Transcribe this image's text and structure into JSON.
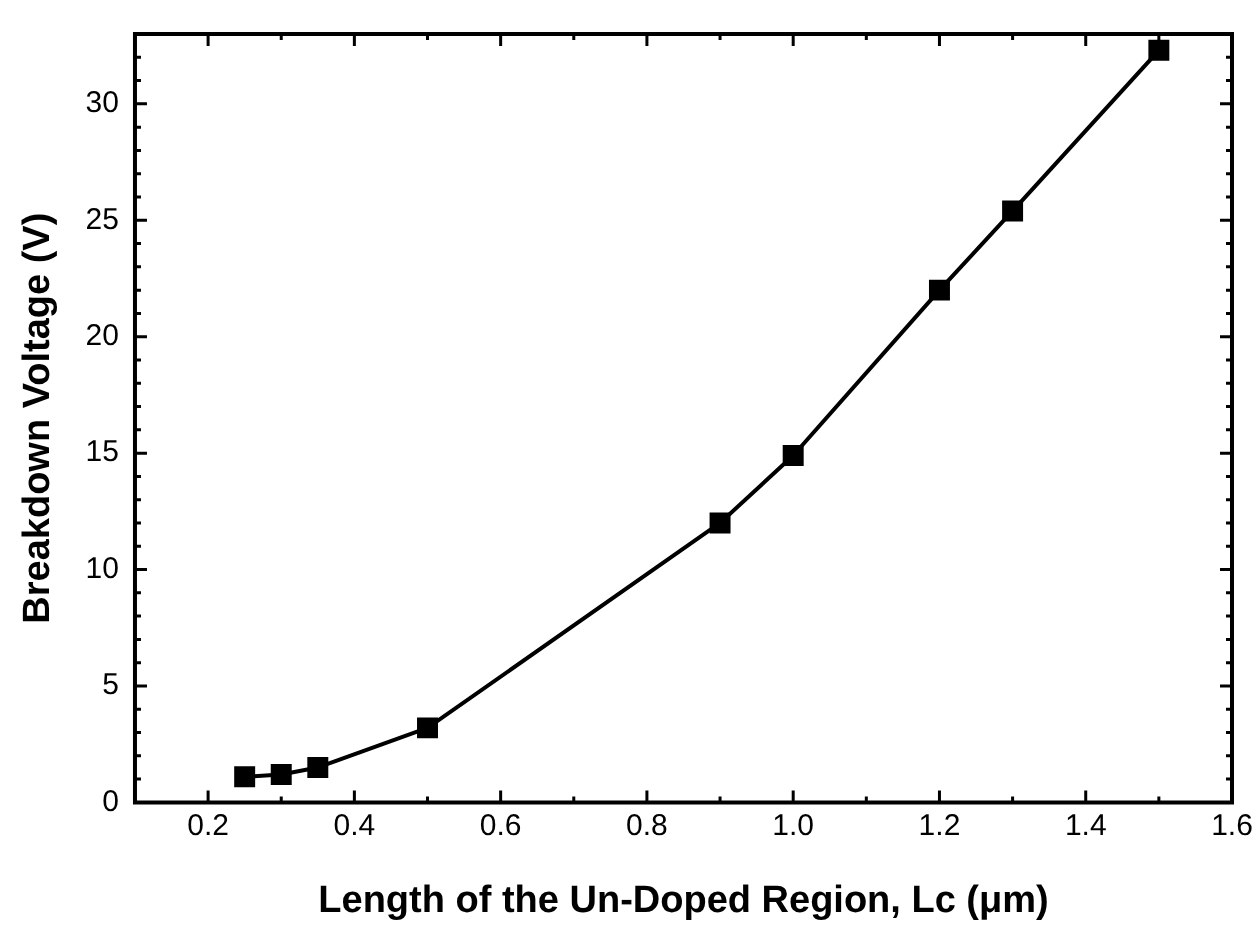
{
  "chart_data": {
    "type": "line",
    "xlabel": "Length of the Un-Doped Region, Lc (μm)",
    "ylabel": "Breakdown Voltage (V)",
    "x": [
      0.25,
      0.3,
      0.35,
      0.5,
      0.9,
      1.0,
      1.2,
      1.3,
      1.5
    ],
    "series": [
      {
        "color": "#000000",
        "values": [
          1.1,
          1.2,
          1.5,
          3.2,
          12.0,
          14.9,
          22.0,
          25.4,
          32.3
        ]
      }
    ],
    "xlim": [
      0.1,
      1.6
    ],
    "xticks": [
      0.2,
      0.4,
      0.6,
      0.8,
      {
        "value": 1,
        "label": "1.0"
      },
      1.2,
      1.4,
      1.6
    ],
    "ylim": [
      0,
      33
    ],
    "yticks": [
      0,
      5,
      10,
      15,
      20,
      25,
      30
    ],
    "grid": false,
    "legend": false,
    "marker": "square",
    "line_style": "solid"
  }
}
